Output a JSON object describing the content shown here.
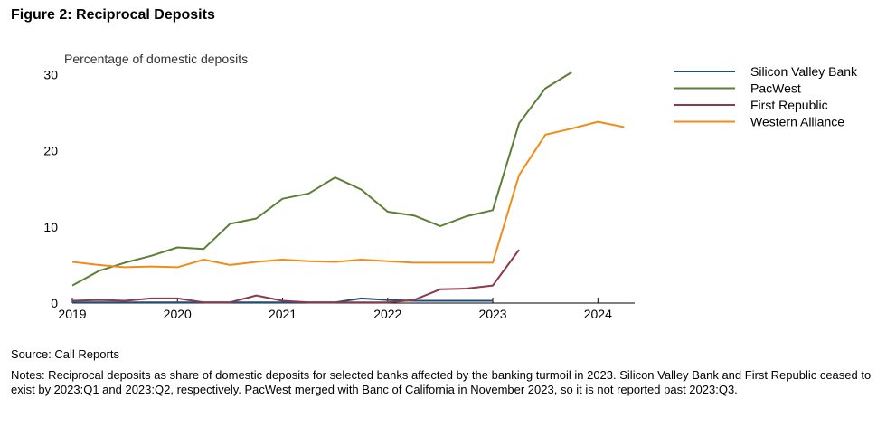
{
  "figure": {
    "title": "Figure 2: Reciprocal Deposits",
    "source": "Source: Call Reports",
    "notes": "Notes: Reciprocal deposits as share of domestic deposits for selected banks affected by the banking turmoil in 2023. Silicon Valley Bank and First Republic ceased to exist by 2023:Q1 and 2023:Q2, respectively. PacWest merged with Banc of California in November 2023, so it is not reported past 2023:Q3."
  },
  "chart_data": {
    "type": "line",
    "title": "",
    "ylabel": "Percentage of domestic deposits",
    "xlabel": "",
    "xlim": [
      2019,
      2024.35
    ],
    "ylim": [
      0,
      31
    ],
    "xticks": [
      2019,
      2020,
      2021,
      2022,
      2023,
      2024
    ],
    "xtick_labels": [
      "2019",
      "2020",
      "2021",
      "2022",
      "2023",
      "2024"
    ],
    "yticks": [
      0,
      10,
      20,
      30
    ],
    "ytick_labels": [
      "0",
      "10",
      "20",
      "30"
    ],
    "grid": false,
    "legend_position": "top-right",
    "series": [
      {
        "name": "Silicon Valley Bank",
        "color": "#1f4e79",
        "x": [
          2019,
          2019.25,
          2019.5,
          2019.75,
          2020,
          2020.25,
          2020.5,
          2020.75,
          2021,
          2021.25,
          2021.5,
          2021.75,
          2022,
          2022.25,
          2022.5,
          2022.75,
          2023
        ],
        "y": [
          0.1,
          0.1,
          0.1,
          0.1,
          0.1,
          0.1,
          0.1,
          0.1,
          0.1,
          0.1,
          0.1,
          0.6,
          0.4,
          0.3,
          0.3,
          0.3,
          0.3
        ]
      },
      {
        "name": "PacWest",
        "color": "#5b7f35",
        "x": [
          2019,
          2019.25,
          2019.5,
          2019.75,
          2020,
          2020.25,
          2020.5,
          2020.75,
          2021,
          2021.25,
          2021.5,
          2021.75,
          2022,
          2022.25,
          2022.5,
          2022.75,
          2023,
          2023.25,
          2023.5,
          2023.75
        ],
        "y": [
          2.3,
          4.2,
          5.3,
          6.2,
          7.3,
          7.1,
          10.4,
          11.1,
          13.7,
          14.4,
          16.5,
          14.9,
          12.0,
          11.5,
          10.1,
          11.4,
          12.2,
          23.6,
          28.2,
          30.3
        ]
      },
      {
        "name": "First Republic",
        "color": "#8b3a4a",
        "x": [
          2019,
          2019.25,
          2019.5,
          2019.75,
          2020,
          2020.25,
          2020.5,
          2020.75,
          2021,
          2021.25,
          2021.5,
          2021.75,
          2022,
          2022.25,
          2022.5,
          2022.75,
          2023,
          2023.25
        ],
        "y": [
          0.3,
          0.4,
          0.3,
          0.6,
          0.6,
          0.1,
          0.1,
          1.0,
          0.3,
          0.1,
          0.1,
          0.1,
          0.1,
          0.4,
          1.8,
          1.9,
          2.3,
          7.0
        ]
      },
      {
        "name": "Western Alliance",
        "color": "#f08c1a",
        "x": [
          2019,
          2019.25,
          2019.5,
          2019.75,
          2020,
          2020.25,
          2020.5,
          2020.75,
          2021,
          2021.25,
          2021.5,
          2021.75,
          2022,
          2022.25,
          2022.5,
          2022.75,
          2023,
          2023.25,
          2023.5,
          2023.75,
          2024,
          2024.25
        ],
        "y": [
          5.4,
          5.0,
          4.7,
          4.8,
          4.7,
          5.7,
          5.0,
          5.4,
          5.7,
          5.5,
          5.4,
          5.7,
          5.5,
          5.3,
          5.3,
          5.3,
          5.3,
          16.8,
          22.1,
          22.9,
          23.8,
          23.1
        ]
      }
    ]
  }
}
